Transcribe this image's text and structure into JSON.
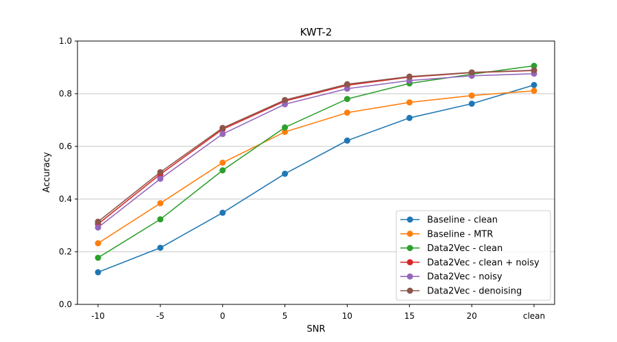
{
  "chart_data": {
    "type": "line",
    "title": "KWT-2",
    "xlabel": "SNR",
    "ylabel": "Accuracy",
    "categories": [
      "-10",
      "-5",
      "0",
      "5",
      "10",
      "15",
      "20",
      "clean"
    ],
    "ylim": [
      0.0,
      1.0
    ],
    "yticks": [
      "0.0",
      "0.2",
      "0.4",
      "0.6",
      "0.8",
      "1.0"
    ],
    "grid": "horizontal",
    "legend_position": "lower-right",
    "series": [
      {
        "name": "Baseline - clean",
        "color": "#1f77b4",
        "values": [
          0.122,
          0.215,
          0.348,
          0.496,
          0.622,
          0.708,
          0.762,
          0.833
        ]
      },
      {
        "name": "Baseline - MTR",
        "color": "#ff7f0e",
        "values": [
          0.232,
          0.384,
          0.538,
          0.655,
          0.728,
          0.767,
          0.793,
          0.811
        ]
      },
      {
        "name": "Data2Vec - clean",
        "color": "#2ca02c",
        "values": [
          0.177,
          0.323,
          0.509,
          0.672,
          0.78,
          0.839,
          0.874,
          0.906
        ]
      },
      {
        "name": "Data2Vec - clean + noisy",
        "color": "#d62728",
        "values": [
          0.305,
          0.494,
          0.665,
          0.772,
          0.832,
          0.863,
          0.88,
          0.888
        ]
      },
      {
        "name": "Data2Vec - noisy",
        "color": "#9467bd",
        "values": [
          0.292,
          0.477,
          0.647,
          0.76,
          0.819,
          0.85,
          0.868,
          0.876
        ]
      },
      {
        "name": "Data2Vec - denoising",
        "color": "#8c564b",
        "values": [
          0.314,
          0.502,
          0.67,
          0.776,
          0.836,
          0.865,
          0.881,
          0.889
        ]
      }
    ]
  }
}
